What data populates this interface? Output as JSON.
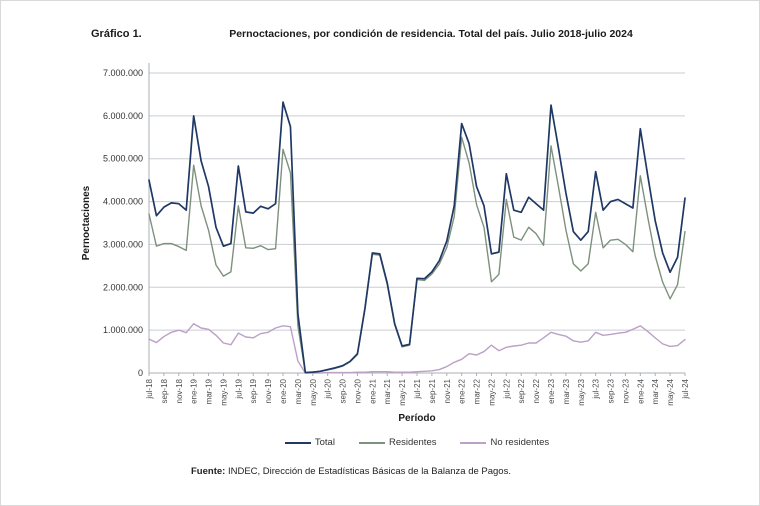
{
  "page": {
    "figure_label": "Gráfico 1.",
    "title": "Pernoctaciones, por condición de residencia. Total del país. Julio 2018-julio 2024",
    "source_prefix": "Fuente:",
    "source_text": " INDEC, Dirección de Estadísticas Básicas de la Balanza de Pagos."
  },
  "chart_data": {
    "type": "line",
    "title": "Pernoctaciones, por condición de residencia. Total del país. Julio 2018-julio 2024",
    "xlabel": "Período",
    "ylabel": "Pernoctaciones",
    "units": "pernoctaciones, values in millions",
    "ylim": [
      0,
      7
    ],
    "y_tick_labels": [
      "0",
      "1.000.000",
      "2.000.000",
      "3.000.000",
      "4.000.000",
      "5.000.000",
      "6.000.000",
      "7.000.000"
    ],
    "grid": "horizontal",
    "legend_position": "bottom",
    "x_tick_every": 2,
    "categories": [
      "jul-18",
      "ago-18",
      "sep-18",
      "oct-18",
      "nov-18",
      "dic-18",
      "ene-19",
      "feb-19",
      "mar-19",
      "abr-19",
      "may-19",
      "jun-19",
      "jul-19",
      "ago-19",
      "sep-19",
      "oct-19",
      "nov-19",
      "dic-19",
      "ene-20",
      "feb-20",
      "mar-20",
      "abr-20",
      "may-20",
      "jun-20",
      "jul-20",
      "ago-20",
      "sep-20",
      "oct-20",
      "nov-20",
      "dic-20",
      "ene-21",
      "feb-21",
      "mar-21",
      "abr-21",
      "may-21",
      "jun-21",
      "jul-21",
      "ago-21",
      "sep-21",
      "oct-21",
      "nov-21",
      "dic-21",
      "ene-22",
      "feb-22",
      "mar-22",
      "abr-22",
      "may-22",
      "jun-22",
      "jul-22",
      "ago-22",
      "sep-22",
      "oct-22",
      "nov-22",
      "dic-22",
      "ene-23",
      "feb-23",
      "mar-23",
      "abr-23",
      "may-23",
      "jun-23",
      "jul-23",
      "ago-23",
      "sep-23",
      "oct-23",
      "nov-23",
      "dic-23",
      "ene-24",
      "feb-24",
      "mar-24",
      "abr-24",
      "may-24",
      "jun-24",
      "jul-24"
    ],
    "series": [
      {
        "name": "Total",
        "color": "#1F3864",
        "values_millions": [
          4.5,
          3.67,
          3.87,
          3.97,
          3.95,
          3.8,
          6.0,
          4.95,
          4.35,
          3.4,
          2.96,
          3.02,
          4.83,
          3.76,
          3.73,
          3.89,
          3.83,
          3.95,
          6.32,
          5.75,
          1.38,
          0.01,
          0.02,
          0.04,
          0.08,
          0.12,
          0.17,
          0.27,
          0.45,
          1.5,
          2.8,
          2.78,
          2.1,
          1.15,
          0.63,
          0.67,
          2.21,
          2.2,
          2.36,
          2.62,
          3.08,
          3.9,
          5.82,
          5.35,
          4.35,
          3.9,
          2.78,
          2.82,
          4.65,
          3.8,
          3.75,
          4.1,
          3.95,
          3.8,
          6.25,
          5.25,
          4.2,
          3.3,
          3.1,
          3.3,
          4.7,
          3.8,
          4.0,
          4.05,
          3.95,
          3.85,
          5.7,
          4.6,
          3.55,
          2.8,
          2.35,
          2.7,
          4.08
        ]
      },
      {
        "name": "Residentes",
        "color": "#7D917D",
        "values_millions": [
          3.71,
          2.96,
          3.02,
          3.02,
          2.95,
          2.86,
          4.85,
          3.9,
          3.33,
          2.52,
          2.26,
          2.36,
          3.9,
          2.92,
          2.91,
          2.97,
          2.88,
          2.9,
          5.22,
          4.67,
          1.1,
          0.01,
          0.02,
          0.04,
          0.07,
          0.11,
          0.16,
          0.26,
          0.43,
          1.48,
          2.77,
          2.75,
          2.07,
          1.13,
          0.61,
          0.65,
          2.18,
          2.16,
          2.31,
          2.54,
          2.93,
          3.65,
          5.5,
          4.9,
          3.93,
          3.4,
          2.13,
          2.3,
          4.05,
          3.17,
          3.1,
          3.4,
          3.25,
          2.98,
          5.3,
          4.35,
          3.34,
          2.55,
          2.38,
          2.55,
          3.75,
          2.92,
          3.1,
          3.12,
          3.0,
          2.83,
          4.6,
          3.63,
          2.73,
          2.12,
          1.73,
          2.06,
          3.3
        ]
      },
      {
        "name": "No residentes",
        "color": "#BCA0C6",
        "values_millions": [
          0.79,
          0.71,
          0.85,
          0.95,
          1.0,
          0.94,
          1.15,
          1.05,
          1.02,
          0.88,
          0.7,
          0.66,
          0.93,
          0.84,
          0.82,
          0.92,
          0.95,
          1.05,
          1.1,
          1.08,
          0.28,
          0.0,
          0.0,
          0.0,
          0.01,
          0.01,
          0.01,
          0.01,
          0.02,
          0.02,
          0.03,
          0.03,
          0.03,
          0.02,
          0.02,
          0.02,
          0.03,
          0.04,
          0.05,
          0.08,
          0.15,
          0.25,
          0.32,
          0.45,
          0.42,
          0.5,
          0.65,
          0.52,
          0.6,
          0.63,
          0.65,
          0.7,
          0.7,
          0.82,
          0.95,
          0.9,
          0.86,
          0.75,
          0.72,
          0.75,
          0.95,
          0.88,
          0.9,
          0.93,
          0.95,
          1.02,
          1.1,
          0.97,
          0.82,
          0.68,
          0.62,
          0.64,
          0.78
        ]
      }
    ]
  }
}
